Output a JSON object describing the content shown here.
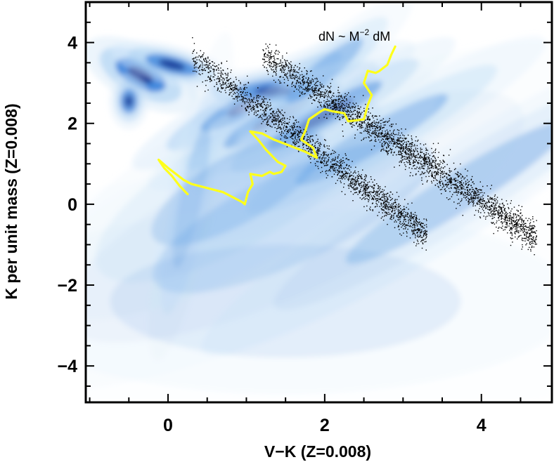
{
  "chart_data": {
    "type": "scatter",
    "title": "",
    "xlabel": "V−K   (Z=0.008)",
    "ylabel": "K per unit mass   (Z=0.008)",
    "annotation": {
      "base": "dN ~ M",
      "exponent": "−2",
      "tail": " dM"
    },
    "xlim": [
      -1.05,
      4.9
    ],
    "ylim": [
      5.0,
      -4.9
    ],
    "y_inverted": true,
    "x_ticks": [
      0,
      2,
      4
    ],
    "x_tick_labels": [
      "0",
      "2",
      "4"
    ],
    "x_minor_step": 0.5,
    "y_ticks": [
      -4,
      -2,
      0,
      2,
      4
    ],
    "y_tick_labels": [
      "−4",
      "−2",
      "0",
      "2",
      "4"
    ],
    "y_minor_step": 0.5,
    "grid": false,
    "colors": {
      "density_dark": "#0a2a8a",
      "density_mid": "#1c6fd6",
      "density_light": "#a9cff2",
      "density_faint": "#dcecfa",
      "points": "#000000",
      "track": "#ffff1a"
    },
    "density_blobs": [
      {
        "x": -0.35,
        "y": 3.2,
        "sx": 0.25,
        "sy": 0.22,
        "rot": 28,
        "w": 1.0
      },
      {
        "x": 0.05,
        "y": 3.45,
        "sx": 0.25,
        "sy": 0.15,
        "rot": 15,
        "w": 0.85
      },
      {
        "x": -0.5,
        "y": 2.55,
        "sx": 0.08,
        "sy": 0.22,
        "rot": 0,
        "w": 0.75
      },
      {
        "x": 1.1,
        "y": 2.55,
        "sx": 0.55,
        "sy": 0.2,
        "rot": -28,
        "w": 0.9
      },
      {
        "x": 1.45,
        "y": 2.2,
        "sx": 0.6,
        "sy": 0.22,
        "rot": -28,
        "w": 0.7
      },
      {
        "x": 1.35,
        "y": 2.8,
        "sx": 0.35,
        "sy": 0.18,
        "rot": 0,
        "w": 0.65
      },
      {
        "x": 2.0,
        "y": 2.2,
        "sx": 0.6,
        "sy": 0.2,
        "rot": -30,
        "w": 0.7
      },
      {
        "x": 2.6,
        "y": 1.6,
        "sx": 0.8,
        "sy": 0.25,
        "rot": -30,
        "w": 0.5
      },
      {
        "x": 3.7,
        "y": 0.3,
        "sx": 1.2,
        "sy": 0.35,
        "rot": -32,
        "w": 0.38
      },
      {
        "x": 2.0,
        "y": 3.3,
        "sx": 0.45,
        "sy": 0.2,
        "rot": -40,
        "w": 0.4
      },
      {
        "x": 0.3,
        "y": 0.2,
        "sx": 0.1,
        "sy": 1.3,
        "rot": 12,
        "w": 0.3
      },
      {
        "x": 0.9,
        "y": 0.4,
        "sx": 0.9,
        "sy": 0.6,
        "rot": -30,
        "w": 0.3
      },
      {
        "x": 1.6,
        "y": -0.3,
        "sx": 1.4,
        "sy": 0.8,
        "rot": -25,
        "w": 0.2
      },
      {
        "x": 1.5,
        "y": -2.4,
        "sx": 1.6,
        "sy": 1.0,
        "rot": 0,
        "w": 0.12
      }
    ],
    "point_sequences": [
      {
        "name": "",
        "x_range": [
          0.3,
          3.3
        ],
        "y_start": 3.65,
        "slope": -1.47,
        "spread_y": 0.18,
        "count": 1900
      },
      {
        "name": "",
        "x_range": [
          1.2,
          4.7
        ],
        "y_start": 3.7,
        "slope": -1.29,
        "spread_y": 0.2,
        "count": 2600
      }
    ],
    "series": [
      {
        "name": "",
        "x": [
          0.25,
          0.15,
          0.05,
          -0.05,
          -0.12,
          0.0,
          0.2,
          0.3,
          0.5,
          0.7,
          0.85,
          0.95,
          0.98,
          1.02,
          1.08,
          1.05,
          1.2,
          1.3,
          1.35,
          1.45,
          1.5,
          1.4,
          1.25,
          1.15,
          1.05,
          1.2,
          1.35,
          1.55,
          1.75,
          1.9,
          1.85,
          1.7,
          1.75,
          1.8,
          1.95,
          2.0,
          2.1,
          2.25,
          2.3,
          2.5,
          2.55,
          2.6,
          2.5,
          2.55,
          2.65,
          2.7,
          2.8,
          2.85,
          2.9
        ],
        "y": [
          0.25,
          0.45,
          0.7,
          0.9,
          1.1,
          0.9,
          0.6,
          0.5,
          0.4,
          0.3,
          0.15,
          0.05,
          0.0,
          0.3,
          0.5,
          0.75,
          0.7,
          0.8,
          0.75,
          0.8,
          0.95,
          1.05,
          1.35,
          1.6,
          1.8,
          1.75,
          1.6,
          1.45,
          1.3,
          1.15,
          1.4,
          1.6,
          1.8,
          2.1,
          2.3,
          2.35,
          2.3,
          2.25,
          2.05,
          2.1,
          2.45,
          2.7,
          3.0,
          3.3,
          3.25,
          3.3,
          3.45,
          3.7,
          3.9
        ]
      }
    ]
  }
}
